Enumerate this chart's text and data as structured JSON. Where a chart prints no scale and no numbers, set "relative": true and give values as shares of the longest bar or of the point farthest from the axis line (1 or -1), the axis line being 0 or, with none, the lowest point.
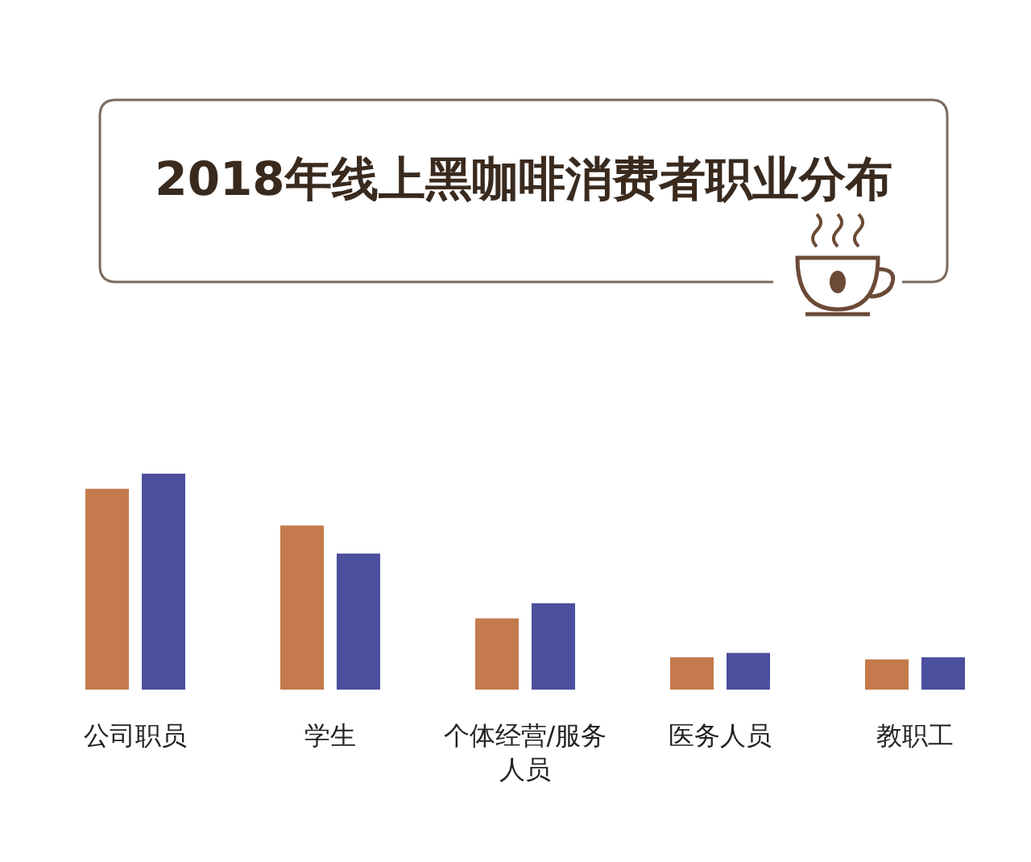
{
  "chart_data": {
    "type": "bar",
    "title": "2018年线上黑咖啡消费者职业分布",
    "relative": true,
    "categories": [
      "公司职员",
      "学生",
      "个体经营/服务人员",
      "医务人员",
      "教职工"
    ],
    "series": [
      {
        "color": "#c47a4c",
        "values": [
          0.93,
          0.76,
          0.33,
          0.15,
          0.14
        ]
      },
      {
        "color": "#4b4f9e",
        "values": [
          1,
          0.63,
          0.4,
          0.17,
          0.15
        ]
      }
    ]
  }
}
